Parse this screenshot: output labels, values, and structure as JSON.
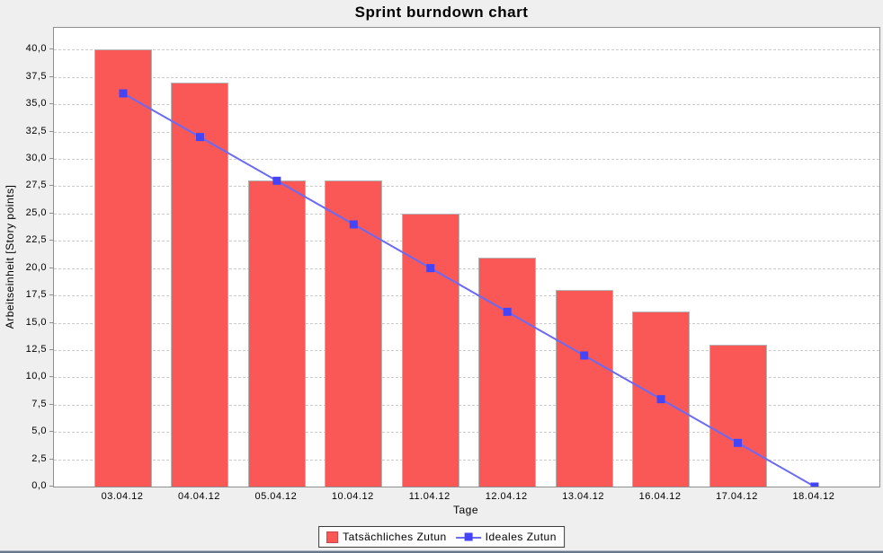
{
  "chart_data": {
    "type": "bar",
    "title": "Sprint burndown chart",
    "xlabel": "Tage",
    "ylabel": "Arbeitseinheit [Story points]",
    "categories": [
      "03.04.12",
      "04.04.12",
      "05.04.12",
      "10.04.12",
      "11.04.12",
      "12.04.12",
      "13.04.12",
      "16.04.12",
      "17.04.12",
      "18.04.12"
    ],
    "series": [
      {
        "name": "Tatsächliches Zutun",
        "type": "bar",
        "color": "#fa5757",
        "border_color": "#b4b4b4",
        "values": [
          40,
          37,
          28,
          28,
          25,
          21,
          18,
          16,
          13,
          0
        ]
      },
      {
        "name": "Ideales Zutun",
        "type": "line",
        "color": "#6a6af2",
        "marker_color": "#4444fa",
        "values": [
          36,
          32,
          28,
          24,
          20,
          16,
          12,
          8,
          4,
          0
        ]
      }
    ],
    "ylim": [
      0,
      42
    ],
    "yticks": [
      0,
      2.5,
      5,
      7.5,
      10,
      12.5,
      15,
      17.5,
      20,
      22.5,
      25,
      27.5,
      30,
      32.5,
      35,
      37.5,
      40
    ],
    "ytick_labels": [
      "0,0",
      "2,5",
      "5,0",
      "7,5",
      "10,0",
      "12,5",
      "15,0",
      "17,5",
      "20,0",
      "22,5",
      "25,0",
      "27,5",
      "30,0",
      "32,5",
      "35,0",
      "37,5",
      "40,0"
    ],
    "grid": "horizontal-dashed",
    "legend_position": "bottom"
  },
  "colors": {
    "page_background": "#efefef",
    "plot_background": "#ffffff",
    "plot_border": "#8f8f8f",
    "gridline": "#cccccc",
    "window_edge": "#67768b"
  }
}
